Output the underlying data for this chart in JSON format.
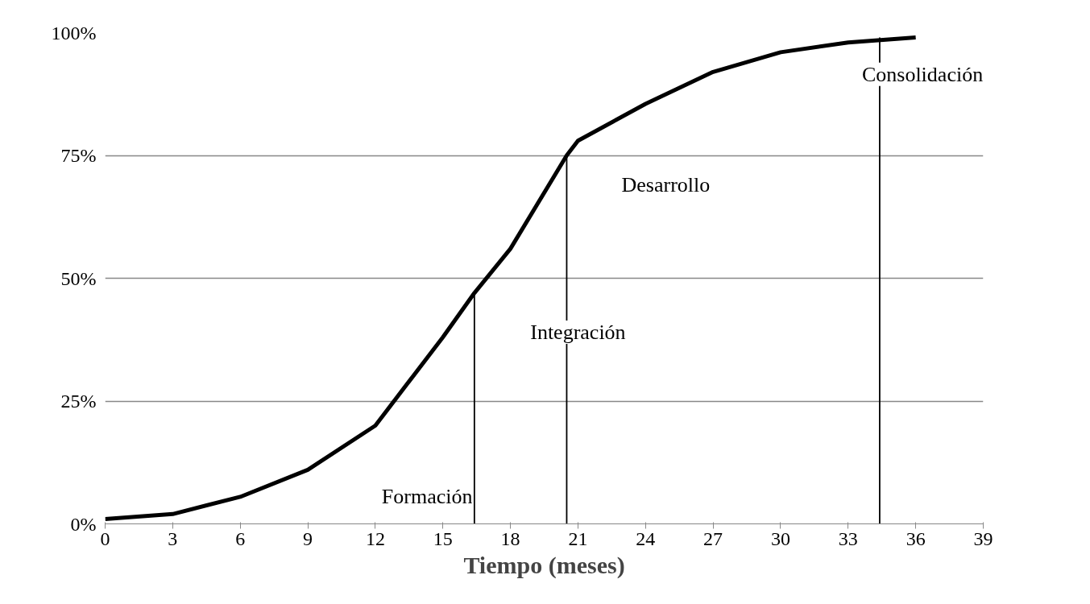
{
  "chart_data": {
    "type": "line",
    "xlabel": "Tiempo (meses)",
    "xlim": [
      0,
      39
    ],
    "xticks": [
      0,
      3,
      6,
      9,
      12,
      15,
      18,
      21,
      24,
      27,
      30,
      33,
      36,
      39
    ],
    "ylim": [
      0,
      100
    ],
    "yticks": [
      {
        "value": 0,
        "label": "0%"
      },
      {
        "value": 25,
        "label": "25%"
      },
      {
        "value": 50,
        "label": "50%"
      },
      {
        "value": 75,
        "label": "75%"
      },
      {
        "value": 100,
        "label": "100%"
      }
    ],
    "grid": "y",
    "marker": "none",
    "line_style": "solid",
    "series": [
      {
        "color": "#000000",
        "x": [
          0,
          3,
          6,
          9,
          12,
          15,
          16.4,
          18,
          20.5,
          21,
          24,
          27,
          30,
          33,
          36
        ],
        "values": [
          1,
          2,
          5.5,
          11,
          20,
          38,
          47,
          56,
          75,
          78,
          85.5,
          92,
          96,
          98,
          99
        ]
      },
      {
        "color": "#000000",
        "x": [
          16.4,
          16.4
        ],
        "values": [
          0,
          47
        ]
      },
      {
        "color": "#000000",
        "x": [
          20.5,
          20.5
        ],
        "values": [
          0,
          75
        ]
      },
      {
        "color": "#000000",
        "x": [
          34.4,
          34.4
        ],
        "values": [
          0,
          99
        ]
      }
    ],
    "annotations": [
      "Formación",
      "Integración",
      "Desarrollo",
      "Consolidación"
    ]
  }
}
